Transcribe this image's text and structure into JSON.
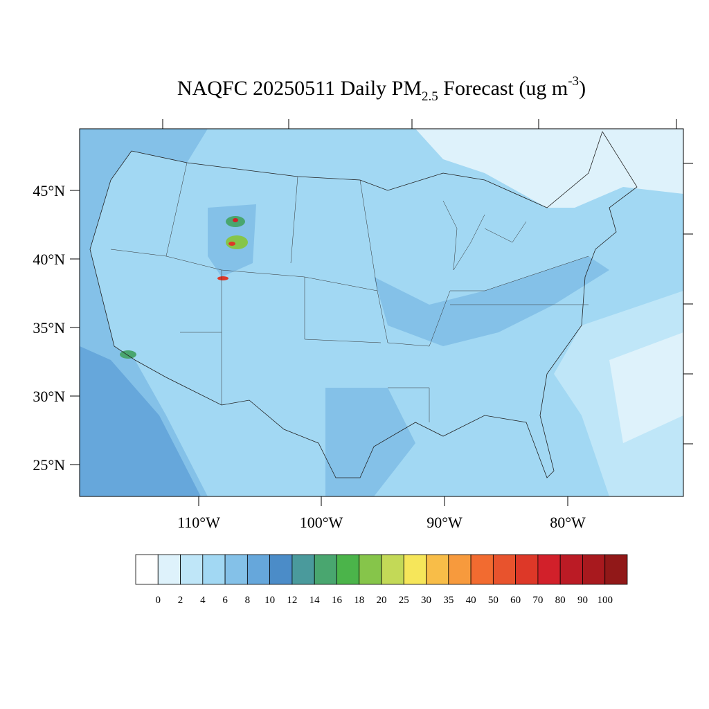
{
  "header": {
    "title_main": "NAQFC 20250511 Daily PM",
    "title_sub": "2.5",
    "title_mid": " Forecast (ug m",
    "title_sup": "-3",
    "title_end": ")"
  },
  "map": {
    "lat_labels": [
      "45°N",
      "40°N",
      "35°N",
      "30°N",
      "25°N"
    ],
    "lon_labels": [
      "110°W",
      "100°W",
      "90°W",
      "80°W"
    ]
  },
  "colorbar": {
    "levels": [
      0,
      2,
      4,
      6,
      8,
      10,
      12,
      14,
      16,
      18,
      20,
      25,
      30,
      35,
      40,
      50,
      60,
      70,
      80,
      90,
      100
    ],
    "colors": [
      "#ffffff",
      "#def2fb",
      "#bfe6f8",
      "#a2d8f3",
      "#84c1e8",
      "#66a7db",
      "#4b8cc8",
      "#4a9a9c",
      "#49a66f",
      "#4bb44a",
      "#86c54a",
      "#c3d957",
      "#f6e65a",
      "#f8bd48",
      "#f79a3d",
      "#f26b30",
      "#e8532d",
      "#dd3828",
      "#d2202a",
      "#bb1b25",
      "#a8191e",
      "#911818"
    ]
  }
}
